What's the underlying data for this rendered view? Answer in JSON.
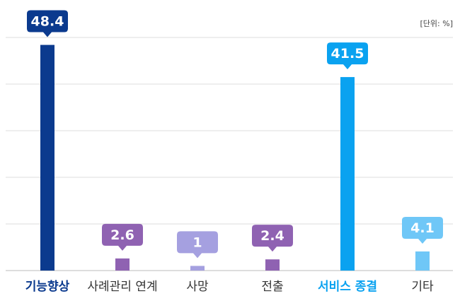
{
  "chart_data": {
    "type": "bar",
    "unit_label": "[단위: %]",
    "categories": [
      "기능향상",
      "사례관리 연계",
      "사망",
      "전출",
      "서비스 종결",
      "기타"
    ],
    "values": [
      48.4,
      2.6,
      1,
      2.4,
      41.5,
      4.1
    ],
    "colors": [
      "#0b3a8e",
      "#8f62b2",
      "#a5a0e0",
      "#8f62b2",
      "#0aa2f0",
      "#6fc7f7"
    ],
    "label_colors": [
      "#0b3a8e",
      "#333333",
      "#333333",
      "#333333",
      "#0aa2f0",
      "#333333"
    ],
    "ylim": [
      0,
      50
    ],
    "yticks": [
      0,
      10,
      20,
      30,
      40,
      50
    ],
    "grid": true
  }
}
